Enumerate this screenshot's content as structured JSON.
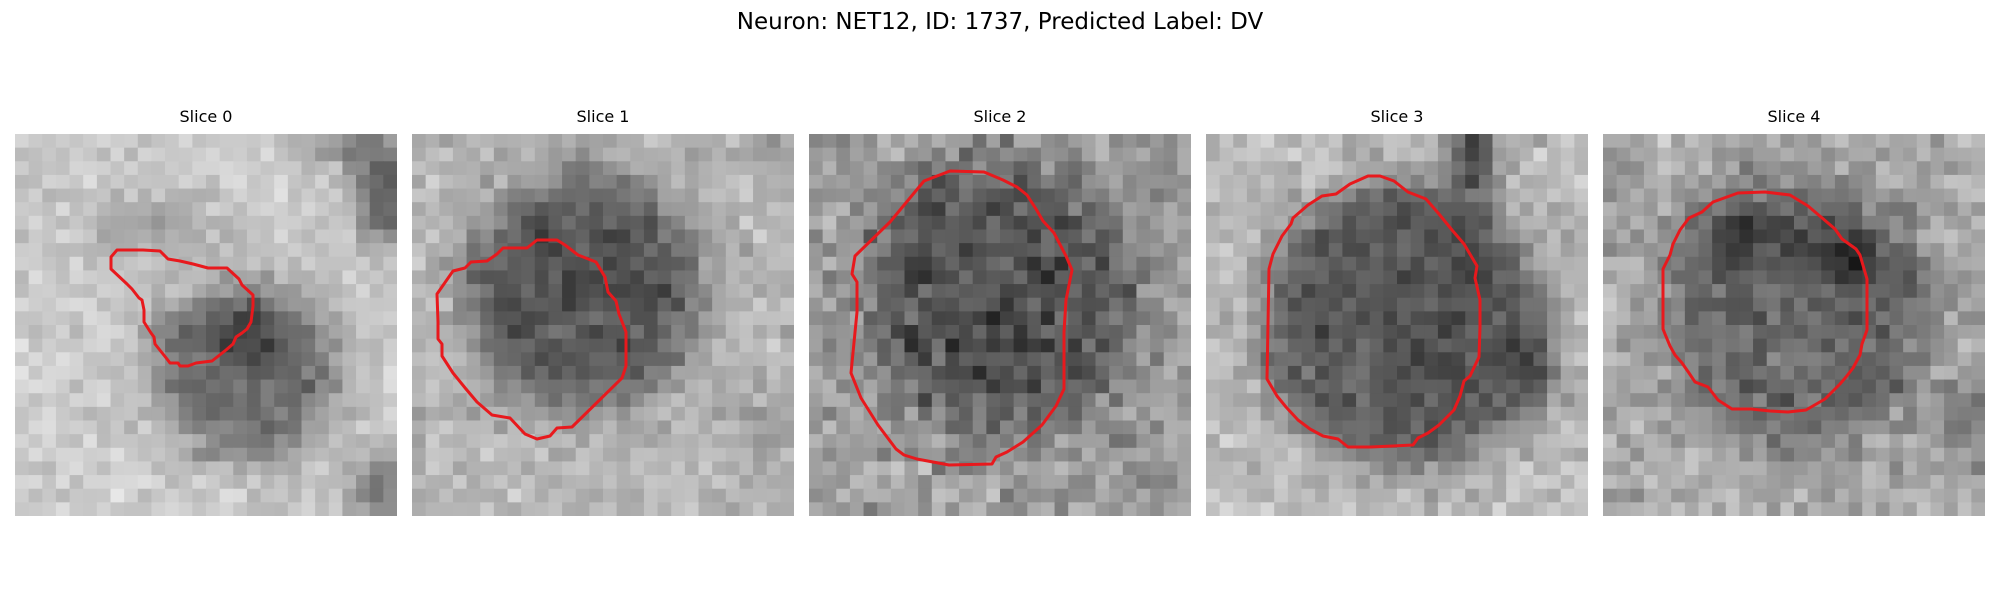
{
  "figure": {
    "title": "Neuron: NET12, ID: 1737, Predicted Label: DV"
  },
  "slices": [
    {
      "title": "Slice 0"
    },
    {
      "title": "Slice 1"
    },
    {
      "title": "Slice 2"
    },
    {
      "title": "Slice 3"
    },
    {
      "title": "Slice 4"
    }
  ],
  "colors": {
    "contour": "#e8191d",
    "colormap": "grayscale"
  }
}
